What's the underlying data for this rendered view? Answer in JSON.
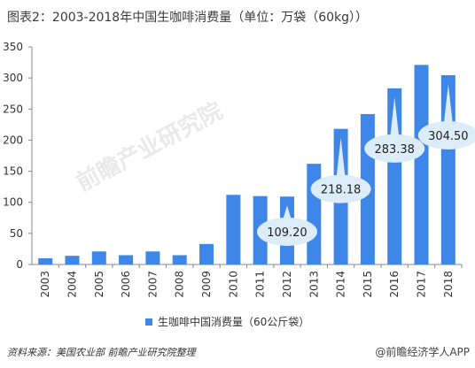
{
  "title": "图表2：2003-2018年中国生咖啡消费量（单位：万袋（60kg））",
  "watermark": "前瞻产业研究院",
  "legend_label": "生咖啡中国消费量（60公斤袋）",
  "source_text": "资料来源：美国农业部 前瞻产业研究院整理",
  "brand_text": "@前瞻经济学人APP",
  "colors": {
    "bar": "#3f86e9",
    "bubble": "#dcecf8"
  },
  "chart_data": {
    "type": "bar",
    "categories": [
      "2003",
      "2004",
      "2005",
      "2006",
      "2007",
      "2008",
      "2009",
      "2010",
      "2011",
      "2012",
      "2013",
      "2014",
      "2015",
      "2016",
      "2017",
      "2018"
    ],
    "series": [
      {
        "name": "生咖啡中国消费量（60公斤袋）",
        "values": [
          10,
          14,
          21,
          15,
          21,
          15,
          33,
          112,
          110,
          109.2,
          162,
          218.18,
          242,
          283.38,
          321,
          304.5
        ]
      }
    ],
    "ylim": [
      0,
      350
    ],
    "yticks": [
      0,
      50,
      100,
      150,
      200,
      250,
      300,
      350
    ],
    "annotations": [
      {
        "category": "2012",
        "label": "109.20"
      },
      {
        "category": "2014",
        "label": "218.18"
      },
      {
        "category": "2016",
        "label": "283.38"
      },
      {
        "category": "2018",
        "label": "304.50"
      }
    ],
    "grid": false
  }
}
